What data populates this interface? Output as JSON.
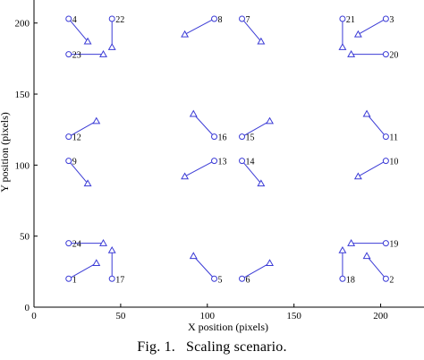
{
  "chart_data": {
    "type": "scatter",
    "xlabel": "X position (pixels)",
    "ylabel": "Y position (pixels)",
    "xlim": [
      0,
      225
    ],
    "ylim": [
      0,
      220
    ],
    "xticks": [
      0,
      50,
      100,
      150,
      200
    ],
    "yticks": [
      0,
      50,
      100,
      150,
      200
    ],
    "markers": {
      "original": "circle",
      "scaled": "triangle"
    },
    "color": "#3b3bd6",
    "points": [
      {
        "id": "1",
        "x": 20,
        "y": 20,
        "x2": 36,
        "y2": 31
      },
      {
        "id": "2",
        "x": 203,
        "y": 20,
        "x2": 192,
        "y2": 36
      },
      {
        "id": "3",
        "x": 203,
        "y": 203,
        "x2": 187,
        "y2": 192
      },
      {
        "id": "4",
        "x": 20,
        "y": 203,
        "x2": 31,
        "y2": 187
      },
      {
        "id": "5",
        "x": 104,
        "y": 20,
        "x2": 92,
        "y2": 36
      },
      {
        "id": "6",
        "x": 120,
        "y": 20,
        "x2": 136,
        "y2": 31
      },
      {
        "id": "7",
        "x": 120,
        "y": 203,
        "x2": 131,
        "y2": 187
      },
      {
        "id": "8",
        "x": 104,
        "y": 203,
        "x2": 87,
        "y2": 192
      },
      {
        "id": "9",
        "x": 20,
        "y": 103,
        "x2": 31,
        "y2": 87
      },
      {
        "id": "10",
        "x": 203,
        "y": 103,
        "x2": 187,
        "y2": 92
      },
      {
        "id": "11",
        "x": 203,
        "y": 120,
        "x2": 192,
        "y2": 136
      },
      {
        "id": "12",
        "x": 20,
        "y": 120,
        "x2": 36,
        "y2": 131
      },
      {
        "id": "13",
        "x": 104,
        "y": 103,
        "x2": 87,
        "y2": 92
      },
      {
        "id": "14",
        "x": 120,
        "y": 103,
        "x2": 131,
        "y2": 87
      },
      {
        "id": "15",
        "x": 120,
        "y": 120,
        "x2": 136,
        "y2": 131
      },
      {
        "id": "16",
        "x": 104,
        "y": 120,
        "x2": 92,
        "y2": 136
      },
      {
        "id": "17",
        "x": 45,
        "y": 20,
        "x2": 45,
        "y2": 40
      },
      {
        "id": "18",
        "x": 178,
        "y": 20,
        "x2": 178,
        "y2": 40
      },
      {
        "id": "19",
        "x": 203,
        "y": 45,
        "x2": 183,
        "y2": 45
      },
      {
        "id": "20",
        "x": 203,
        "y": 178,
        "x2": 183,
        "y2": 178
      },
      {
        "id": "21",
        "x": 178,
        "y": 203,
        "x2": 178,
        "y2": 183
      },
      {
        "id": "22",
        "x": 45,
        "y": 203,
        "x2": 45,
        "y2": 183
      },
      {
        "id": "23",
        "x": 20,
        "y": 178,
        "x2": 40,
        "y2": 178
      },
      {
        "id": "24",
        "x": 20,
        "y": 45,
        "x2": 40,
        "y2": 45
      }
    ]
  },
  "caption": {
    "label": "Fig. 1.",
    "text": "Scaling scenario."
  }
}
